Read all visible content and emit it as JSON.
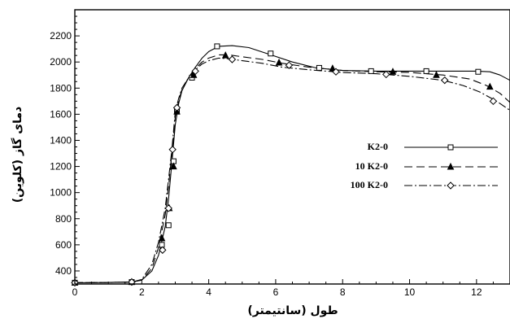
{
  "chart_data": {
    "type": "line",
    "xlabel": "طول (سانتیمتر)",
    "ylabel": "دمای گاز (کلوین)",
    "xlim": [
      0,
      13
    ],
    "ylim": [
      300,
      2400
    ],
    "x_ticks": [
      "0",
      "2",
      "4",
      "6",
      "8",
      "10",
      "12"
    ],
    "x_tick_values": [
      0,
      2,
      4,
      6,
      8,
      10,
      12
    ],
    "y_ticks": [
      "400",
      "600",
      "800",
      "1000",
      "1200",
      "1400",
      "1600",
      "1800",
      "2000",
      "2200"
    ],
    "y_tick_values": [
      400,
      600,
      800,
      1000,
      1200,
      1400,
      1600,
      1800,
      2000,
      2200
    ],
    "legend_position": "middle-right",
    "series": [
      {
        "name": "K2-0",
        "dash": "solid",
        "marker": "square",
        "x": [
          0,
          1,
          1.7,
          2.0,
          2.3,
          2.5,
          2.7,
          2.8,
          2.9,
          3.0,
          3.1,
          3.2,
          3.4,
          3.6,
          3.8,
          4.0,
          4.3,
          4.7,
          5.2,
          5.8,
          6.5,
          7.2,
          8.0,
          9.0,
          10.0,
          11.0,
          12.0,
          12.4,
          12.7,
          13.0
        ],
        "y": [
          310,
          312,
          315,
          330,
          400,
          520,
          740,
          950,
          1230,
          1520,
          1680,
          1780,
          1880,
          1960,
          2030,
          2080,
          2120,
          2125,
          2110,
          2060,
          2000,
          1955,
          1935,
          1930,
          1930,
          1930,
          1930,
          1925,
          1900,
          1860
        ],
        "markers_x": [
          0,
          1.7,
          2.6,
          2.8,
          2.95,
          3.05,
          3.5,
          4.25,
          5.85,
          7.3,
          8.85,
          10.5,
          12.05
        ],
        "markers_y": [
          310,
          315,
          600,
          750,
          1240,
          1620,
          1880,
          2120,
          2065,
          1955,
          1930,
          1930,
          1925
        ]
      },
      {
        "name": "10 K2-0",
        "dash": "dashed",
        "marker": "triangle",
        "x": [
          0,
          1,
          1.7,
          2.0,
          2.3,
          2.5,
          2.7,
          2.8,
          2.9,
          3.0,
          3.1,
          3.2,
          3.4,
          3.6,
          3.8,
          4.0,
          4.3,
          4.6,
          5.0,
          5.6,
          6.2,
          7.0,
          8.0,
          9.0,
          10.0,
          11.0,
          11.8,
          12.3,
          12.7,
          13.0
        ],
        "y": [
          310,
          312,
          315,
          330,
          420,
          580,
          830,
          1050,
          1300,
          1580,
          1700,
          1790,
          1880,
          1950,
          2000,
          2030,
          2055,
          2055,
          2040,
          2020,
          1990,
          1960,
          1935,
          1925,
          1920,
          1900,
          1870,
          1820,
          1760,
          1690
        ],
        "markers_x": [
          0,
          1.7,
          2.6,
          2.82,
          2.95,
          3.05,
          3.55,
          4.5,
          6.1,
          7.7,
          9.5,
          10.8,
          12.4
        ],
        "markers_y": [
          310,
          315,
          650,
          880,
          1200,
          1620,
          1900,
          2050,
          1995,
          1950,
          1925,
          1900,
          1810
        ]
      },
      {
        "name": "100 K2-0",
        "dash": "dashdot",
        "marker": "diamond",
        "x": [
          0,
          1,
          1.7,
          2.0,
          2.3,
          2.5,
          2.7,
          2.8,
          2.9,
          3.0,
          3.1,
          3.2,
          3.4,
          3.6,
          3.8,
          4.0,
          4.3,
          4.6,
          5.0,
          5.6,
          6.2,
          7.0,
          8.0,
          9.0,
          10.0,
          11.0,
          11.6,
          12.1,
          12.6,
          13.0
        ],
        "y": [
          310,
          312,
          315,
          335,
          450,
          620,
          880,
          1100,
          1330,
          1620,
          1720,
          1800,
          1880,
          1940,
          1985,
          2010,
          2030,
          2025,
          2010,
          1990,
          1960,
          1940,
          1920,
          1910,
          1890,
          1860,
          1820,
          1770,
          1700,
          1630
        ],
        "markers_x": [
          0,
          1.7,
          2.62,
          2.8,
          2.92,
          3.05,
          3.6,
          4.7,
          6.4,
          7.8,
          9.3,
          11.05,
          12.5
        ],
        "markers_y": [
          310,
          315,
          560,
          880,
          1330,
          1650,
          1930,
          2020,
          1975,
          1925,
          1905,
          1860,
          1700
        ]
      }
    ]
  }
}
